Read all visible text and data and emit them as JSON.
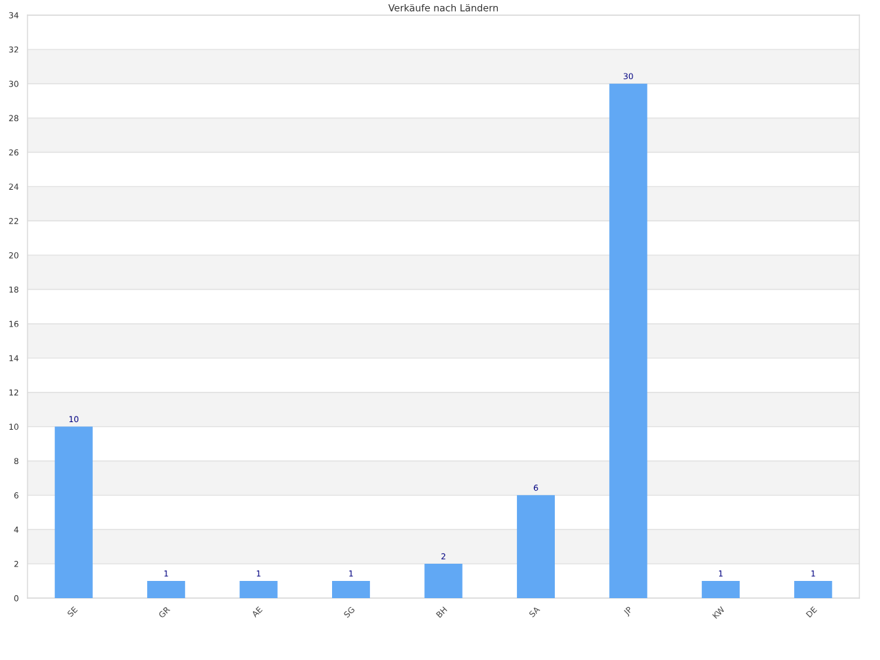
{
  "chart_data": {
    "type": "bar",
    "title": "Verkäufe nach Ländern",
    "categories": [
      "SE",
      "GR",
      "AE",
      "SG",
      "BH",
      "SA",
      "JP",
      "KW",
      "DE"
    ],
    "values": [
      10,
      1,
      1,
      1,
      2,
      6,
      30,
      1,
      1
    ],
    "color": "#61a8f4",
    "ylim": [
      0,
      34
    ],
    "yticks": [
      0,
      2,
      4,
      6,
      8,
      10,
      12,
      14,
      16,
      18,
      20,
      22,
      24,
      26,
      28,
      30,
      32,
      34
    ],
    "grid": "y",
    "data_labels": true,
    "bands": [
      {
        "axis": "y",
        "from": 2,
        "to": 4,
        "color": "#f3f3f3"
      },
      {
        "axis": "y",
        "from": 6,
        "to": 8,
        "color": "#f3f3f3"
      },
      {
        "axis": "y",
        "from": 10,
        "to": 12,
        "color": "#f3f3f3"
      },
      {
        "axis": "y",
        "from": 14,
        "to": 16,
        "color": "#f3f3f3"
      },
      {
        "axis": "y",
        "from": 18,
        "to": 20,
        "color": "#f3f3f3"
      },
      {
        "axis": "y",
        "from": 22,
        "to": 24,
        "color": "#f3f3f3"
      },
      {
        "axis": "y",
        "from": 26,
        "to": 28,
        "color": "#f3f3f3"
      },
      {
        "axis": "y",
        "from": 30,
        "to": 32,
        "color": "#f3f3f3"
      }
    ]
  }
}
